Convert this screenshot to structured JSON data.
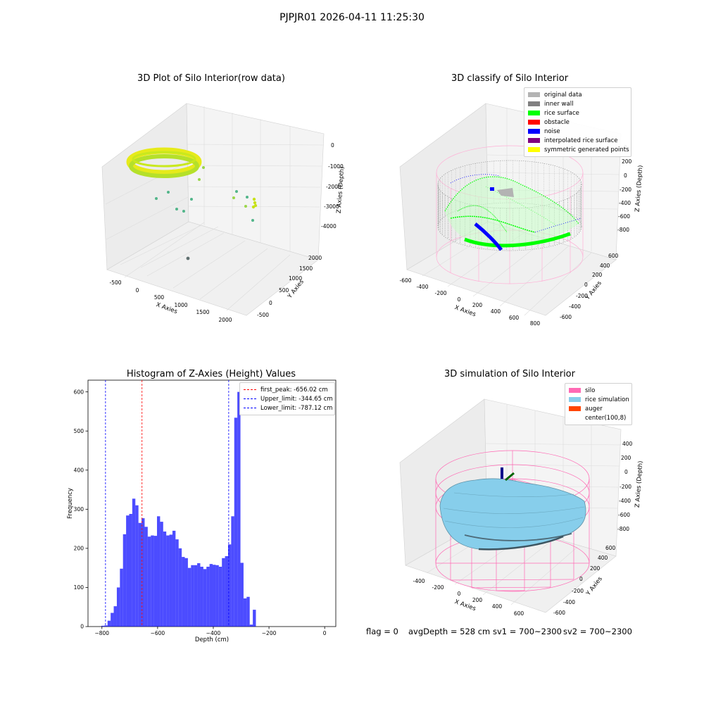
{
  "suptitle": "PJPJR01 2026-04-11 11:25:30",
  "panels": {
    "raw": {
      "title": "3D Plot of Silo Interior(row data)",
      "xlabel": "X Axies",
      "ylabel": "Y Axies",
      "zlabel": "Z Axies (Depth)",
      "xticks": [
        "-500",
        "0",
        "500",
        "1000",
        "1500",
        "2000"
      ],
      "yticks": [
        "-500",
        "0",
        "500",
        "1000",
        "1500",
        "2000"
      ],
      "zticks": [
        "0",
        "-1000",
        "-2000",
        "-3000",
        "-4000"
      ]
    },
    "classify": {
      "title": "3D classify of Silo Interior",
      "xlabel": "X Axies",
      "ylabel": "Y Axies",
      "zlabel": "Z Axies (Depth)",
      "xticks": [
        "-600",
        "-400",
        "-200",
        "0",
        "200",
        "400",
        "600",
        "800"
      ],
      "yticks": [
        "-600",
        "-400",
        "-200",
        "0",
        "200",
        "400",
        "600"
      ],
      "zticks": [
        "200",
        "0",
        "-200",
        "-400",
        "-600",
        "-800"
      ],
      "z_partial_tick": "0",
      "legend": [
        {
          "label": "original data",
          "color": "#b3b3b3"
        },
        {
          "label": "inner wall",
          "color": "#808080"
        },
        {
          "label": "rice surface",
          "color": "#00ff00"
        },
        {
          "label": "obstacle",
          "color": "#ff0000"
        },
        {
          "label": "noise",
          "color": "#0000ff"
        },
        {
          "label": "interpolated rice surface",
          "color": "#800080"
        },
        {
          "label": "symmetric generated points",
          "color": "#ffff00"
        }
      ]
    },
    "simulation": {
      "title": "3D simulation of Silo Interior",
      "xlabel": "X Axies",
      "ylabel": "Y Axies",
      "zlabel": "Z Axies (Depth)",
      "xticks": [
        "-400",
        "-200",
        "0",
        "200",
        "400",
        "600"
      ],
      "yticks": [
        "-600",
        "-400",
        "-200",
        "0",
        "200",
        "400",
        "600"
      ],
      "zticks": [
        "400",
        "200",
        "0",
        "-200",
        "-400",
        "-600",
        "-800"
      ],
      "legend": [
        {
          "label": "silo",
          "color": "#ff69b4"
        },
        {
          "label": "rice simulation",
          "color": "#87ceeb"
        },
        {
          "label": "auger",
          "color": "#ff4500"
        },
        {
          "label": "center(100,8)",
          "color": ""
        }
      ]
    }
  },
  "chart_data": {
    "type": "bar",
    "title": "Histogram of Z-Axies (Height) Values",
    "xlabel": "Depth (cm)",
    "ylabel": "Frequency",
    "xlim": [
      -850,
      40
    ],
    "ylim": [
      0,
      630
    ],
    "xticks": [
      -800,
      -600,
      -400,
      -200,
      0
    ],
    "yticks": [
      0,
      100,
      200,
      300,
      400,
      500,
      600
    ],
    "bar_color": "#0000ff",
    "bin_edges_start": -802,
    "bin_width": 11.1,
    "values": [
      2,
      3,
      15,
      35,
      52,
      100,
      148,
      236,
      284,
      288,
      327,
      310,
      265,
      277,
      255,
      230,
      233,
      232,
      282,
      268,
      243,
      233,
      235,
      245,
      223,
      200,
      178,
      175,
      150,
      157,
      157,
      162,
      153,
      147,
      153,
      160,
      158,
      157,
      153,
      175,
      180,
      210,
      282,
      534,
      600,
      163,
      72,
      76,
      5,
      43
    ],
    "vlines": [
      {
        "x": -656.02,
        "color": "#ff0000",
        "label": "first_peak: -656.02 cm"
      },
      {
        "x": -344.65,
        "color": "#0000ff",
        "label": "Upper_limit: -344.65 cm"
      },
      {
        "x": -787.12,
        "color": "#0000ff",
        "label": "Lower_limit: -787.12 cm"
      }
    ],
    "legend_position": "upper-right"
  },
  "footer": {
    "flag": "flag = 0",
    "avg": "avgDepth = 528 cm",
    "sv1": "sv1 = 700~2300",
    "sv2": "sv2 = 700~2300"
  }
}
